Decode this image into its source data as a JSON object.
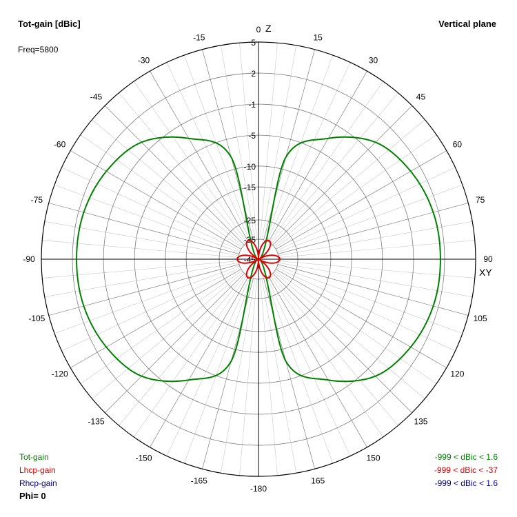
{
  "header": {
    "title": "Tot-gain [dBic]",
    "plane": "Vertical plane",
    "freq": "Freq=5800"
  },
  "axis_labels": {
    "z": "Z",
    "xy": "XY"
  },
  "legend": {
    "items": [
      {
        "name": "Tot-gain",
        "color": "#008000",
        "range": "-999 < dBic < 1.6"
      },
      {
        "name": "Lhcp-gain",
        "color": "#e00000",
        "range": "-999 < dBic < -37"
      },
      {
        "name": "Rhcp-gain",
        "color": "#00008b",
        "range": "-999 < dBic < 1.6"
      }
    ],
    "phi": "Phi= 0"
  },
  "chart_data": {
    "type": "polar",
    "angle_unit": "degrees",
    "angle_ticks": [
      0,
      15,
      30,
      45,
      60,
      75,
      90,
      105,
      120,
      135,
      150,
      165,
      -180,
      -165,
      -150,
      -135,
      -120,
      -105,
      -90,
      -75,
      -60,
      -45,
      -30,
      -15
    ],
    "radial_ticks": [
      5,
      2,
      -1,
      -5,
      -10,
      -15,
      -25,
      -35,
      -45
    ],
    "series": [
      {
        "name": "Tot-gain",
        "color": "#008000",
        "angles": [
          0,
          15,
          30,
          45,
          60,
          75,
          90,
          105,
          120,
          135,
          150,
          165,
          180
        ],
        "gain_dbic": [
          -45,
          -8,
          -3,
          0,
          1,
          1.5,
          1.6,
          1.5,
          1,
          0,
          -3,
          -8,
          -45
        ],
        "symmetric": true
      },
      {
        "name": "Lhcp-gain",
        "color": "#e00000",
        "petals": 6,
        "max_dbic": -37
      }
    ]
  }
}
